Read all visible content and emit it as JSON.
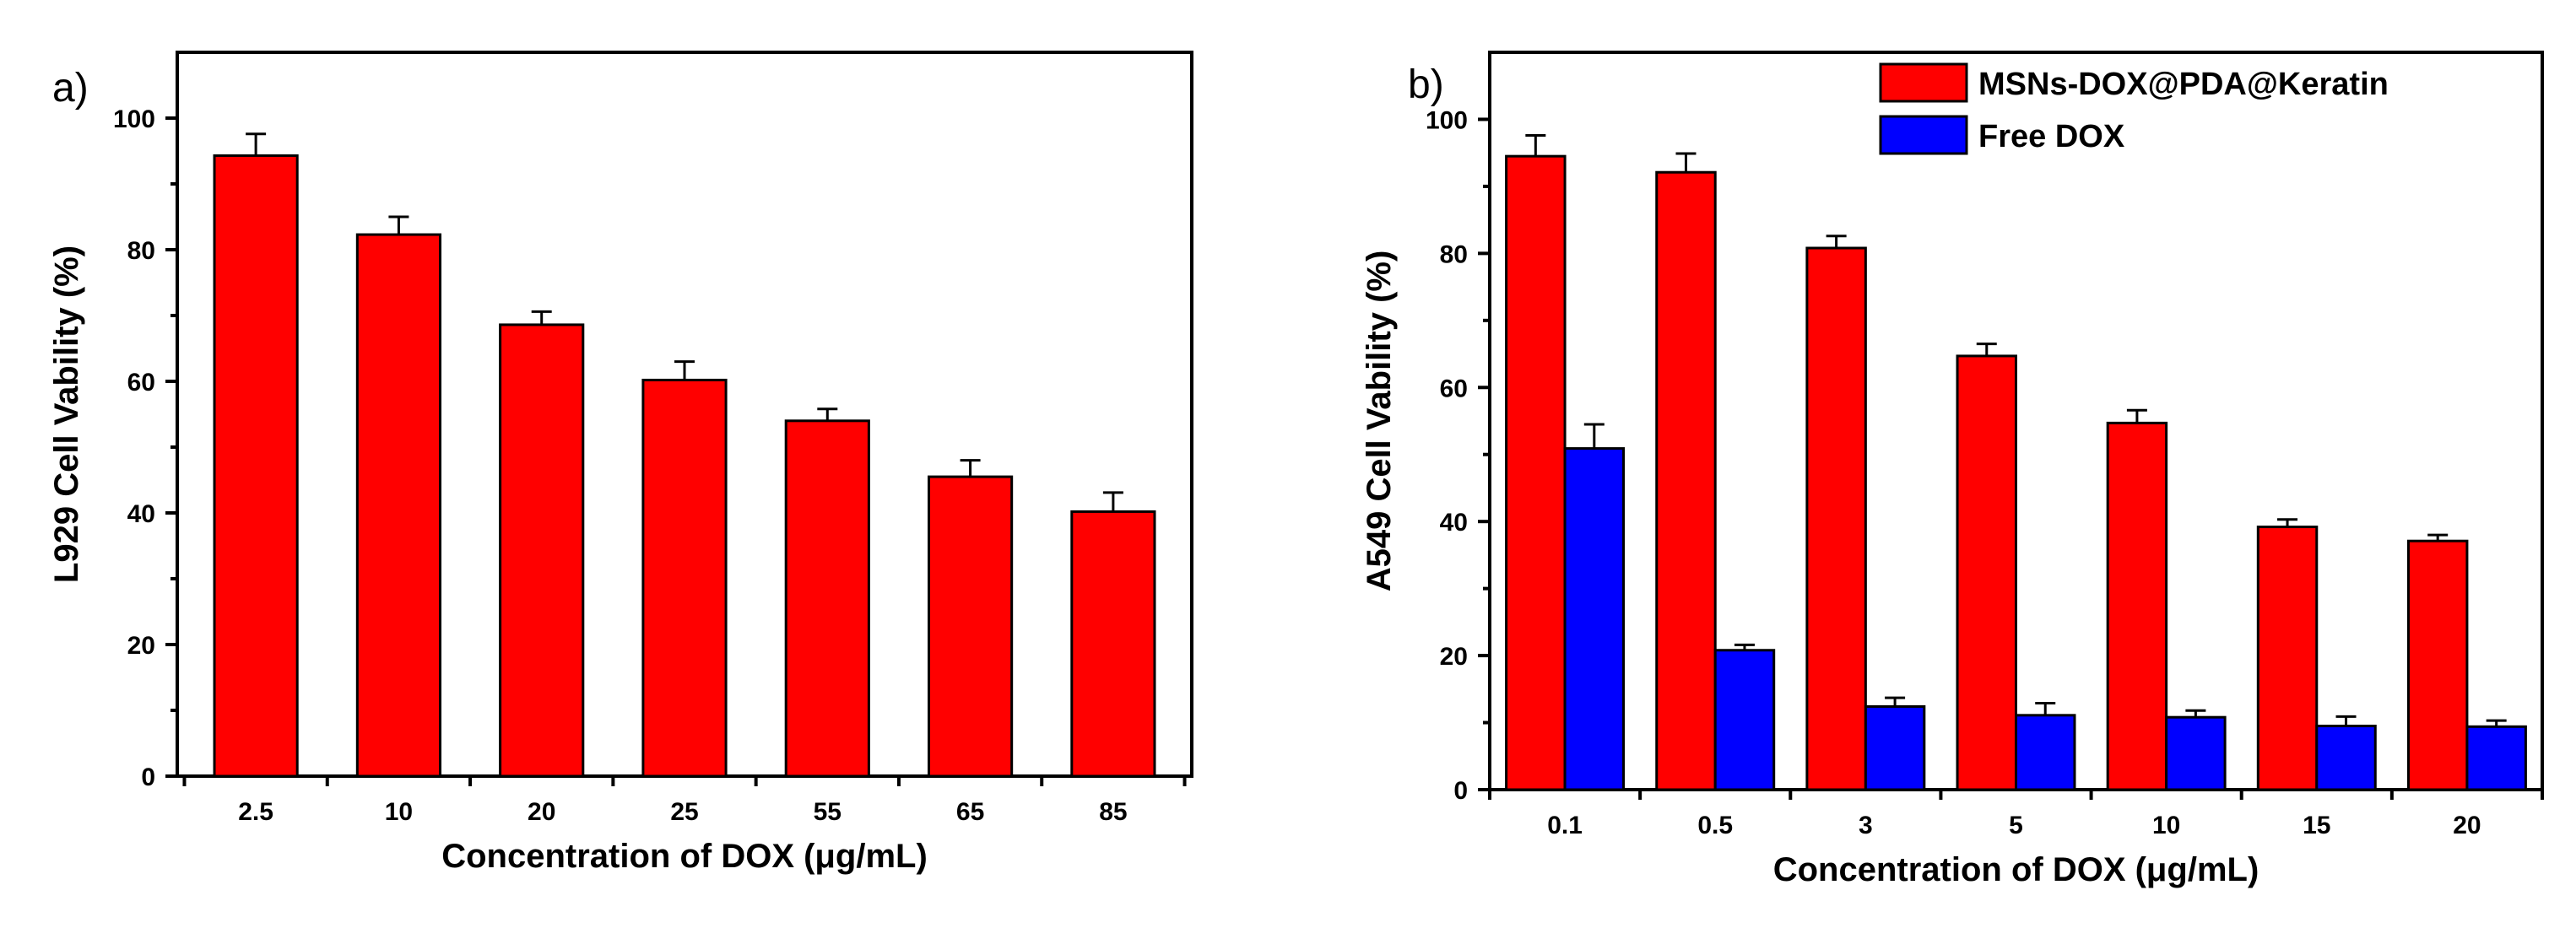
{
  "chart_data": [
    {
      "type": "bar",
      "panel_label": "a)",
      "title": "",
      "xlabel": "Concentration of DOX (μg/mL)",
      "ylabel": "L929 Cell Vability (%)",
      "ylim": [
        0,
        110
      ],
      "yticks": [
        0,
        20,
        40,
        60,
        80,
        100
      ],
      "categories": [
        "2.5",
        "10",
        "20",
        "25",
        "55",
        "65",
        "85"
      ],
      "series": [
        {
          "name": "L929",
          "color": "#ff0000",
          "values": [
            94.3,
            82.3,
            68.6,
            60.2,
            54.0,
            45.5,
            40.2
          ],
          "errors": [
            3.3,
            2.7,
            2.0,
            2.8,
            1.8,
            2.5,
            2.9
          ]
        }
      ],
      "legend": null
    },
    {
      "type": "bar",
      "panel_label": "b)",
      "title": "",
      "xlabel": "Concentration of DOX (μg/mL)",
      "ylabel": "A549 Cell Vability (%)",
      "ylim": [
        0,
        110
      ],
      "yticks": [
        0,
        20,
        40,
        60,
        80,
        100
      ],
      "categories": [
        "0.1",
        "0.5",
        "3",
        "5",
        "10",
        "15",
        "20"
      ],
      "series": [
        {
          "name": "MSNs-DOX@PDA@Keratin",
          "color": "#ff0000",
          "values": [
            94.5,
            92.1,
            80.8,
            64.7,
            54.7,
            39.2,
            37.1
          ],
          "errors": [
            3.1,
            2.8,
            1.8,
            1.8,
            1.9,
            1.1,
            0.9
          ]
        },
        {
          "name": "Free DOX",
          "color": "#0000ff",
          "values": [
            50.9,
            20.8,
            12.4,
            11.1,
            10.8,
            9.5,
            9.4
          ],
          "errors": [
            3.6,
            0.8,
            1.3,
            1.8,
            1.0,
            1.4,
            0.9
          ]
        }
      ],
      "legend": "top-right"
    }
  ]
}
